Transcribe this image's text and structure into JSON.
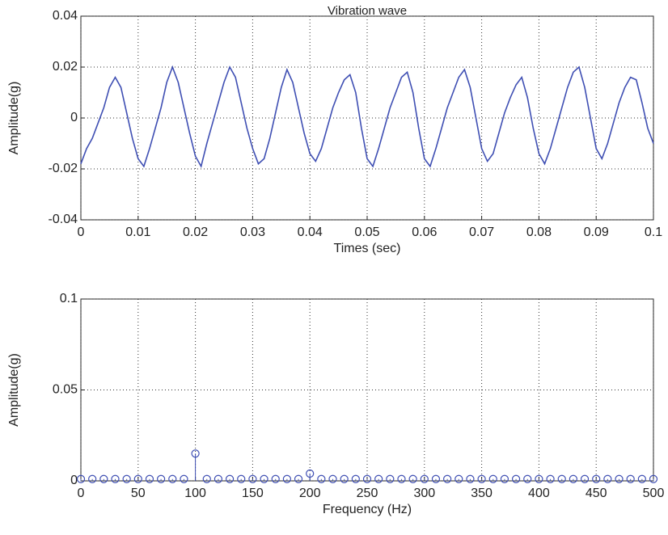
{
  "chart_data": [
    {
      "type": "line",
      "title": "Vibration wave",
      "xlabel": "Times (sec)",
      "ylabel": "Amplitude(g)",
      "x": [
        0,
        0.001,
        0.002,
        0.003,
        0.004,
        0.005,
        0.006,
        0.007,
        0.008,
        0.009,
        0.01,
        0.011,
        0.012,
        0.013,
        0.014,
        0.015,
        0.016,
        0.017,
        0.018,
        0.019,
        0.02,
        0.021,
        0.022,
        0.023,
        0.024,
        0.025,
        0.026,
        0.027,
        0.028,
        0.029,
        0.03,
        0.031,
        0.032,
        0.033,
        0.034,
        0.035,
        0.036,
        0.037,
        0.038,
        0.039,
        0.04,
        0.041,
        0.042,
        0.043,
        0.044,
        0.045,
        0.046,
        0.047,
        0.048,
        0.049,
        0.05,
        0.051,
        0.052,
        0.053,
        0.054,
        0.055,
        0.056,
        0.057,
        0.058,
        0.059,
        0.06,
        0.061,
        0.062,
        0.063,
        0.064,
        0.065,
        0.066,
        0.067,
        0.068,
        0.069,
        0.07,
        0.071,
        0.072,
        0.073,
        0.074,
        0.075,
        0.076,
        0.077,
        0.078,
        0.079,
        0.08,
        0.081,
        0.082,
        0.083,
        0.084,
        0.085,
        0.086,
        0.087,
        0.088,
        0.089,
        0.09,
        0.091,
        0.092,
        0.093,
        0.094,
        0.095,
        0.096,
        0.097,
        0.098,
        0.099,
        0.1
      ],
      "series": [
        {
          "color": "#3f4fb3",
          "values": [
            -0.018,
            -0.012,
            -0.008,
            -0.002,
            0.004,
            0.012,
            0.016,
            0.012,
            0.002,
            -0.008,
            -0.016,
            -0.019,
            -0.012,
            -0.004,
            0.004,
            0.014,
            0.02,
            0.014,
            0.004,
            -0.006,
            -0.015,
            -0.019,
            -0.01,
            -0.002,
            0.006,
            0.014,
            0.02,
            0.016,
            0.006,
            -0.004,
            -0.012,
            -0.018,
            -0.016,
            -0.008,
            0.002,
            0.012,
            0.019,
            0.014,
            0.004,
            -0.006,
            -0.014,
            -0.017,
            -0.012,
            -0.004,
            0.004,
            0.01,
            0.015,
            0.017,
            0.01,
            -0.004,
            -0.016,
            -0.019,
            -0.012,
            -0.004,
            0.004,
            0.01,
            0.016,
            0.018,
            0.01,
            -0.004,
            -0.016,
            -0.019,
            -0.012,
            -0.004,
            0.004,
            0.01,
            0.016,
            0.019,
            0.012,
            0,
            -0.012,
            -0.017,
            -0.014,
            -0.006,
            0.002,
            0.008,
            0.013,
            0.016,
            0.008,
            -0.004,
            -0.014,
            -0.018,
            -0.012,
            -0.004,
            0.004,
            0.012,
            0.018,
            0.02,
            0.012,
            0,
            -0.012,
            -0.016,
            -0.01,
            -0.002,
            0.006,
            0.012,
            0.016,
            0.015,
            0.006,
            -0.004,
            -0.01
          ]
        }
      ],
      "xlim": [
        0,
        0.1
      ],
      "xticks": [
        0,
        0.01,
        0.02,
        0.03,
        0.04,
        0.05,
        0.06,
        0.07,
        0.08,
        0.09,
        0.1
      ],
      "ylim": [
        -0.04,
        0.04
      ],
      "yticks": [
        -0.04,
        -0.02,
        0,
        0.02,
        0.04
      ],
      "grid": true
    },
    {
      "type": "stem",
      "xlabel": "Frequency (Hz)",
      "ylabel": "Amplitude(g)",
      "x": [
        0,
        10,
        20,
        30,
        40,
        50,
        60,
        70,
        80,
        90,
        100,
        110,
        120,
        130,
        140,
        150,
        160,
        170,
        180,
        190,
        200,
        210,
        220,
        230,
        240,
        250,
        260,
        270,
        280,
        290,
        300,
        310,
        320,
        330,
        340,
        350,
        360,
        370,
        380,
        390,
        400,
        410,
        420,
        430,
        440,
        450,
        460,
        470,
        480,
        490,
        500
      ],
      "series": [
        {
          "color": "#3f4fb3",
          "values": [
            0.001,
            0.001,
            0.001,
            0.001,
            0.001,
            0.001,
            0.001,
            0.001,
            0.001,
            0.001,
            0.015,
            0.001,
            0.001,
            0.001,
            0.001,
            0.001,
            0.001,
            0.001,
            0.001,
            0.001,
            0.004,
            0.001,
            0.001,
            0.001,
            0.001,
            0.001,
            0.001,
            0.001,
            0.001,
            0.001,
            0.001,
            0.001,
            0.001,
            0.001,
            0.001,
            0.001,
            0.001,
            0.001,
            0.001,
            0.001,
            0.001,
            0.001,
            0.001,
            0.001,
            0.001,
            0.001,
            0.001,
            0.001,
            0.001,
            0.001,
            0.001
          ]
        }
      ],
      "xlim": [
        0,
        500
      ],
      "xticks": [
        0,
        50,
        100,
        150,
        200,
        250,
        300,
        350,
        400,
        450,
        500
      ],
      "ylim": [
        0,
        0.1
      ],
      "yticks": [
        0,
        0.05,
        0.1
      ],
      "grid": true
    }
  ]
}
